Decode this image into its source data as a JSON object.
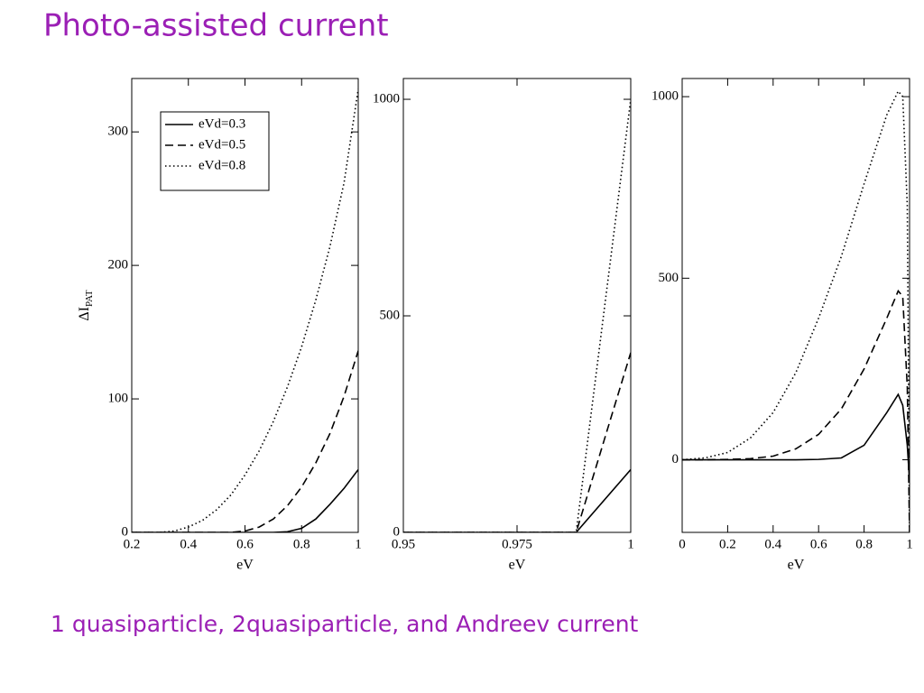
{
  "title": "Photo-assisted current",
  "caption": "1 quasiparticle, 2quasiparticle, and Andreev current",
  "chart_data": [
    {
      "type": "line",
      "xlabel": "eV",
      "ylabel": "ΔI",
      "ylabel_sub": "PAT",
      "x": [
        0.2,
        0.25,
        0.3,
        0.35,
        0.4,
        0.45,
        0.5,
        0.55,
        0.6,
        0.65,
        0.7,
        0.75,
        0.8,
        0.85,
        0.9,
        0.95,
        1
      ],
      "xlim": [
        0.2,
        1
      ],
      "xticks": [
        0.2,
        0.4,
        0.6,
        0.8,
        1
      ],
      "ylim": [
        0,
        340
      ],
      "yticks": [
        0,
        100,
        200,
        300
      ],
      "legend": "upper left",
      "series": [
        {
          "name": "eVd=0.3",
          "color": "#000000",
          "dash": "solid",
          "values": [
            0,
            0,
            0,
            0,
            0,
            0,
            0,
            0,
            0,
            0,
            0,
            0.5,
            3,
            10,
            21,
            33,
            47
          ]
        },
        {
          "name": "eVd=0.5",
          "color": "#000000",
          "dash": "dashed",
          "values": [
            0,
            0,
            0,
            0,
            0,
            0,
            0,
            0,
            1,
            4,
            10,
            20,
            34,
            52,
            74,
            102,
            136
          ]
        },
        {
          "name": "eVd=0.8",
          "color": "#000000",
          "dash": "dotted",
          "values": [
            0,
            0,
            0,
            1,
            4,
            9,
            17,
            28,
            43,
            61,
            83,
            109,
            139,
            174,
            214,
            262,
            332
          ]
        }
      ]
    },
    {
      "type": "line",
      "xlabel": "eV",
      "x": [
        0.95,
        0.988,
        1
      ],
      "xlim": [
        0.95,
        1
      ],
      "xticks": [
        0.95,
        0.975,
        1
      ],
      "ylim": [
        0,
        1048
      ],
      "yticks": [
        0,
        500,
        1000
      ],
      "series": [
        {
          "color": "#000000",
          "dash": "solid",
          "values": [
            0,
            0,
            145
          ]
        },
        {
          "color": "#000000",
          "dash": "dashed",
          "values": [
            0,
            0,
            415
          ]
        },
        {
          "color": "#000000",
          "dash": "dotted",
          "values": [
            0,
            0,
            1000
          ]
        }
      ]
    },
    {
      "type": "line",
      "xlabel": "eV",
      "x": [
        0,
        0.1,
        0.2,
        0.3,
        0.4,
        0.5,
        0.6,
        0.7,
        0.8,
        0.9,
        0.95,
        0.97,
        0.99,
        1
      ],
      "xlim": [
        0,
        1
      ],
      "xticks": [
        0,
        0.2,
        0.4,
        0.6,
        0.8,
        1
      ],
      "ylim": [
        -200,
        1050
      ],
      "yticks": [
        0,
        500,
        1000
      ],
      "series": [
        {
          "color": "#000000",
          "dash": "solid",
          "values": [
            0,
            0,
            0,
            0,
            0,
            0,
            1,
            5,
            40,
            130,
            180,
            150,
            40,
            -60
          ]
        },
        {
          "color": "#000000",
          "dash": "dashed",
          "values": [
            0,
            0,
            1,
            3,
            10,
            30,
            70,
            140,
            250,
            390,
            465,
            450,
            200,
            -200
          ]
        },
        {
          "color": "#000000",
          "dash": "dotted",
          "values": [
            0,
            5,
            20,
            60,
            130,
            240,
            390,
            560,
            760,
            950,
            1015,
            1000,
            700,
            -200
          ]
        }
      ]
    }
  ]
}
